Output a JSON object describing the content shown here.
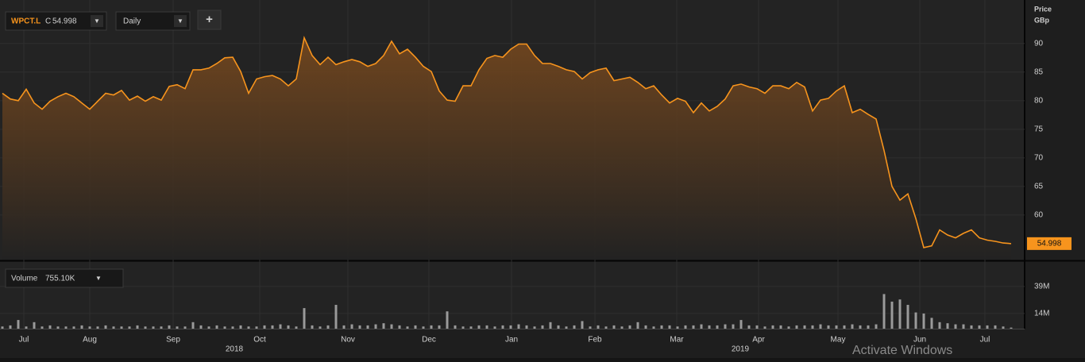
{
  "toolbar": {
    "symbol": "WPCT.L",
    "close_prefix": "C",
    "close": "54.998",
    "interval": "Daily",
    "add_button": "+"
  },
  "volume_header": {
    "label": "Volume",
    "value": "755.10K"
  },
  "watermark": "Activate Windows",
  "chart_data": [
    {
      "type": "line",
      "ylabel": "Price",
      "yunit": "GBp",
      "color": "#f7941d",
      "last_label": "54.998",
      "xlim": [
        0,
        127
      ],
      "ylim": [
        52.2,
        96.5
      ],
      "yticks": [
        60,
        65,
        70,
        75,
        80,
        85,
        90
      ],
      "grid": true,
      "values": [
        81.3,
        80.3,
        80.0,
        82,
        79.6,
        78.5,
        79.9,
        80.7,
        81.3,
        80.7,
        79.6,
        78.5,
        79.9,
        81.3,
        81,
        81.8,
        80.1,
        80.8,
        79.9,
        80.7,
        80.1,
        82.5,
        82.8,
        82.1,
        85.4,
        85.4,
        85.7,
        86.5,
        87.5,
        87.6,
        85.1,
        81.3,
        83.8,
        84.2,
        84.4,
        83.8,
        82.6,
        83.8,
        91,
        87.9,
        86.3,
        87.6,
        86.3,
        86.8,
        87.2,
        86.8,
        86,
        86.5,
        87.9,
        90.4,
        88.2,
        89,
        87.6,
        86,
        85.1,
        81.7,
        80.1,
        79.9,
        82.6,
        82.6,
        85.4,
        87.4,
        87.9,
        87.6,
        89,
        89.9,
        89.9,
        87.9,
        86.5,
        86.5,
        86,
        85.4,
        85.1,
        83.8,
        84.9,
        85.4,
        85.7,
        83.5,
        83.8,
        84.1,
        83.2,
        82.1,
        82.6,
        81,
        79.6,
        80.4,
        79.9,
        77.9,
        79.6,
        78.2,
        79,
        80.3,
        82.6,
        82.9,
        82.4,
        82.1,
        81.3,
        82.6,
        82.6,
        82.1,
        83.2,
        82.4,
        78.2,
        80.1,
        80.4,
        81.7,
        82.6,
        77.9,
        78.5,
        77.6,
        76.8,
        71.3,
        65,
        62.6,
        63.7,
        59.4,
        54.3,
        54.6,
        57.4,
        56.5,
        56,
        56.8,
        57.4,
        56,
        55.6,
        55.4,
        55.1,
        54.998
      ]
    },
    {
      "type": "bar",
      "color": "#9a9a9a",
      "xlim": [
        0,
        127
      ],
      "ylim": [
        0,
        58
      ],
      "yticks": [
        {
          "value": 14,
          "label": "14M"
        },
        {
          "value": 39,
          "label": "39M"
        }
      ],
      "xticks": [
        {
          "value": 2.7,
          "label": "Jul"
        },
        {
          "value": 11,
          "label": "Aug"
        },
        {
          "value": 21.5,
          "label": "Sep"
        },
        {
          "value": 32.4,
          "label": "Oct"
        },
        {
          "value": 43.5,
          "label": "Nov"
        },
        {
          "value": 53.7,
          "label": "Dec"
        },
        {
          "value": 64.1,
          "label": "Jan"
        },
        {
          "value": 74.6,
          "label": "Feb"
        },
        {
          "value": 84.9,
          "label": "Mar"
        },
        {
          "value": 95.2,
          "label": "Apr"
        },
        {
          "value": 105.2,
          "label": "May"
        },
        {
          "value": 115.5,
          "label": "Jun"
        },
        {
          "value": 123.7,
          "label": "Jul"
        }
      ],
      "year_labels": [
        {
          "value": 29.2,
          "label": "2018"
        },
        {
          "value": 92.9,
          "label": "2019"
        }
      ],
      "values": [
        2,
        3,
        8,
        2,
        6,
        2,
        3,
        2,
        2,
        2,
        3,
        2,
        2,
        3,
        2,
        2,
        2,
        3,
        2,
        2,
        2,
        3,
        2,
        2,
        6,
        3,
        2,
        3,
        2,
        2,
        3,
        2,
        2,
        3,
        3,
        4,
        3,
        2,
        19,
        3,
        2,
        3,
        22,
        3,
        4,
        3,
        3,
        4,
        5,
        4,
        3,
        2,
        3,
        2,
        3,
        3,
        16,
        3,
        2,
        2,
        3,
        3,
        2,
        3,
        3,
        4,
        3,
        2,
        3,
        6,
        3,
        2,
        3,
        7,
        2,
        3,
        2,
        3,
        2,
        3,
        6,
        3,
        2,
        3,
        3,
        2,
        3,
        3,
        4,
        3,
        3,
        4,
        4,
        8,
        3,
        3,
        2,
        3,
        3,
        2,
        3,
        3,
        3,
        4,
        3,
        3,
        3,
        4,
        3,
        3,
        4,
        32,
        25,
        27,
        22,
        15,
        14,
        10,
        6,
        5,
        4,
        4,
        3,
        3,
        3,
        3,
        2,
        1
      ]
    }
  ]
}
